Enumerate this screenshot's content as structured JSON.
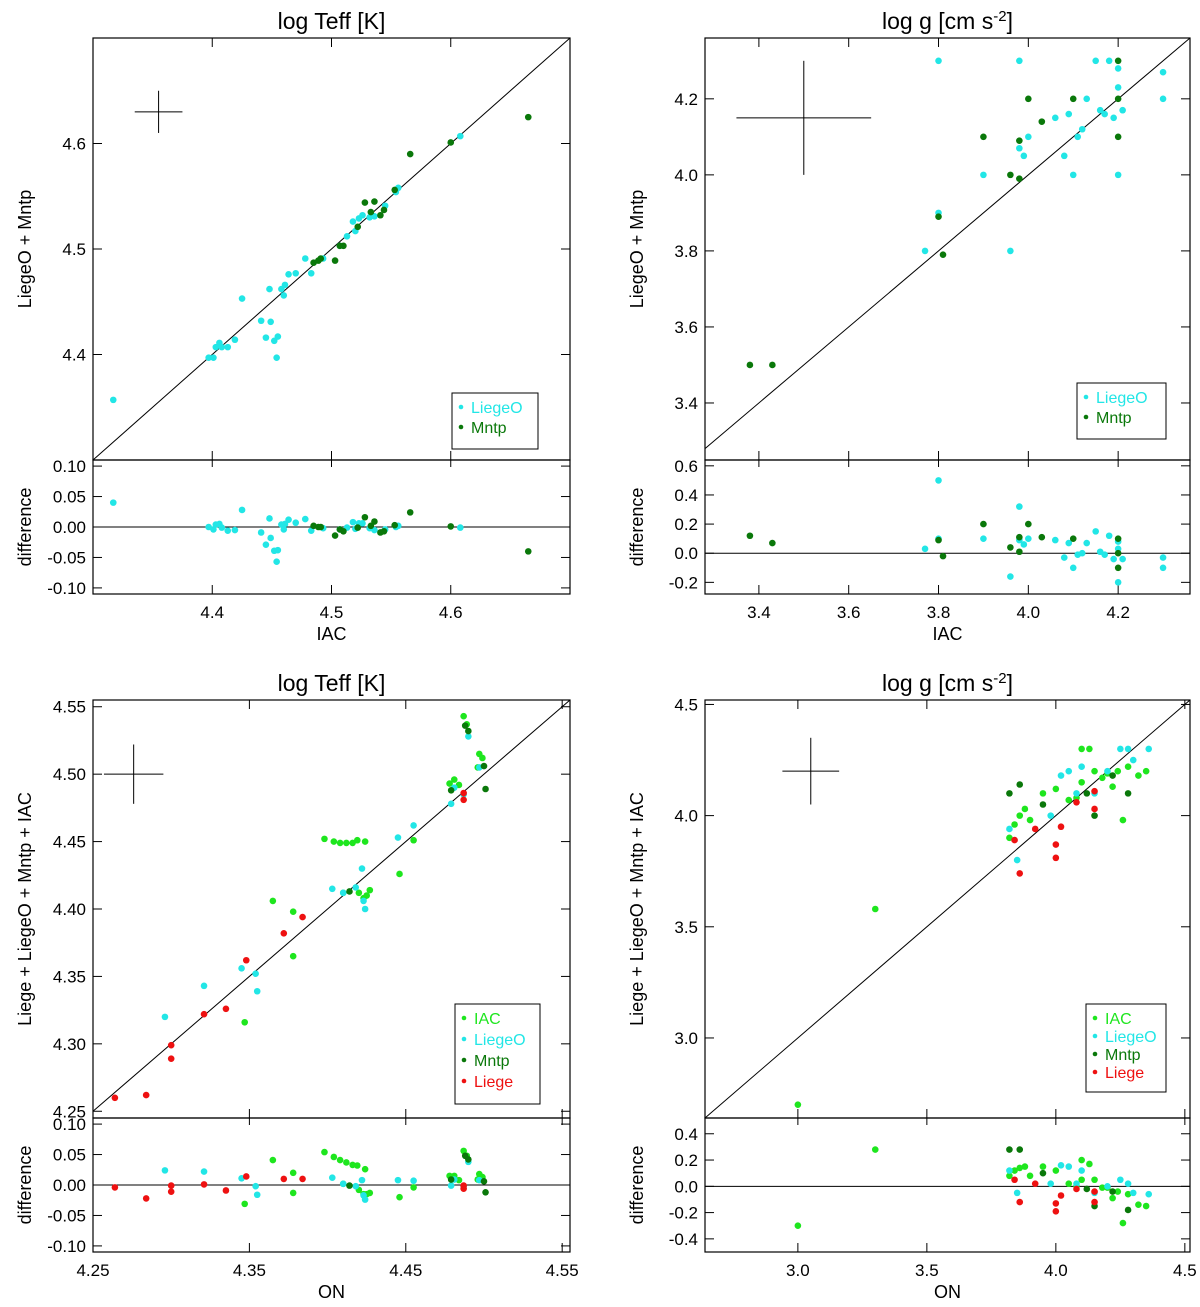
{
  "colors": {
    "IAC": "#1ee61e",
    "LiegeO": "#22e6e6",
    "Mntp": "#0a780a",
    "Liege": "#ee1111",
    "axis": "#000000"
  },
  "chart_data": [
    {
      "id": "p1",
      "type": "scatter",
      "title_main": "log Teff [K]",
      "title_sup": "",
      "xlabel": "IAC",
      "ylabel": "LiegeO + Mntp",
      "diff_ylabel": "difference",
      "xlim": [
        4.3,
        4.7
      ],
      "ylim": [
        4.3,
        4.7
      ],
      "diff_ylim": [
        -0.11,
        0.11
      ],
      "xticks": [
        4.4,
        4.5,
        4.6
      ],
      "yticks": [
        4.4,
        4.5,
        4.6
      ],
      "diff_yticks": [
        -0.1,
        -0.05,
        0.0,
        0.05,
        0.1
      ],
      "tick_decimals": 1,
      "diff_decimals": 2,
      "legend": [
        "LiegeO",
        "Mntp"
      ],
      "errorbar": {
        "x": 4.355,
        "y": 4.63,
        "dx": 0.02,
        "dy": 0.02
      },
      "series": [
        {
          "name": "LiegeO",
          "points": [
            [
              4.317,
              4.357
            ],
            [
              4.397,
              4.397
            ],
            [
              4.401,
              4.397
            ],
            [
              4.403,
              4.407
            ],
            [
              4.406,
              4.411
            ],
            [
              4.408,
              4.407
            ],
            [
              4.413,
              4.407
            ],
            [
              4.419,
              4.414
            ],
            [
              4.425,
              4.453
            ],
            [
              4.441,
              4.432
            ],
            [
              4.445,
              4.416
            ],
            [
              4.449,
              4.431
            ],
            [
              4.448,
              4.462
            ],
            [
              4.452,
              4.413
            ],
            [
              4.454,
              4.397
            ],
            [
              4.455,
              4.417
            ],
            [
              4.458,
              4.462
            ],
            [
              4.46,
              4.456
            ],
            [
              4.461,
              4.466
            ],
            [
              4.464,
              4.476
            ],
            [
              4.47,
              4.477
            ],
            [
              4.478,
              4.491
            ],
            [
              4.483,
              4.477
            ],
            [
              4.493,
              4.491
            ],
            [
              4.507,
              4.503
            ],
            [
              4.513,
              4.512
            ],
            [
              4.518,
              4.526
            ],
            [
              4.52,
              4.517
            ],
            [
              4.523,
              4.529
            ],
            [
              4.526,
              4.532
            ],
            [
              4.532,
              4.53
            ],
            [
              4.536,
              4.531
            ],
            [
              4.545,
              4.541
            ],
            [
              4.554,
              4.554
            ],
            [
              4.556,
              4.558
            ],
            [
              4.608,
              4.607
            ]
          ]
        },
        {
          "name": "Mntp",
          "points": [
            [
              4.485,
              4.487
            ],
            [
              4.489,
              4.489
            ],
            [
              4.491,
              4.491
            ],
            [
              4.503,
              4.489
            ],
            [
              4.507,
              4.503
            ],
            [
              4.51,
              4.503
            ],
            [
              4.522,
              4.521
            ],
            [
              4.528,
              4.544
            ],
            [
              4.533,
              4.535
            ],
            [
              4.536,
              4.545
            ],
            [
              4.541,
              4.532
            ],
            [
              4.544,
              4.537
            ],
            [
              4.553,
              4.556
            ],
            [
              4.566,
              4.59
            ],
            [
              4.6,
              4.601
            ],
            [
              4.665,
              4.625
            ]
          ]
        }
      ]
    },
    {
      "id": "p2",
      "type": "scatter",
      "title_main": "log g [cm s",
      "title_sup": "-2",
      "xlabel": "IAC",
      "ylabel": "LiegeO + Mntp",
      "diff_ylabel": "difference",
      "xlim": [
        3.28,
        4.36
      ],
      "ylim": [
        3.25,
        4.36
      ],
      "diff_ylim": [
        -0.28,
        0.64
      ],
      "xticks": [
        3.4,
        3.6,
        3.8,
        4.0,
        4.2
      ],
      "yticks": [
        3.4,
        3.6,
        3.8,
        4.0,
        4.2
      ],
      "diff_yticks": [
        -0.2,
        0.0,
        0.2,
        0.4,
        0.6
      ],
      "tick_decimals": 1,
      "diff_decimals": 1,
      "legend": [
        "LiegeO",
        "Mntp"
      ],
      "errorbar": {
        "x": 3.5,
        "y": 4.15,
        "dx": 0.15,
        "dy": 0.15
      },
      "series": [
        {
          "name": "LiegeO",
          "points": [
            [
              3.77,
              3.8
            ],
            [
              3.8,
              4.3
            ],
            [
              3.8,
              3.9
            ],
            [
              3.9,
              4.0
            ],
            [
              3.96,
              3.8
            ],
            [
              3.98,
              4.3
            ],
            [
              3.98,
              4.07
            ],
            [
              3.99,
              4.05
            ],
            [
              4.0,
              4.1
            ],
            [
              4.06,
              4.15
            ],
            [
              4.08,
              4.05
            ],
            [
              4.09,
              4.16
            ],
            [
              4.1,
              4.0
            ],
            [
              4.11,
              4.1
            ],
            [
              4.12,
              4.12
            ],
            [
              4.13,
              4.2
            ],
            [
              4.15,
              4.3
            ],
            [
              4.16,
              4.17
            ],
            [
              4.17,
              4.16
            ],
            [
              4.18,
              4.3
            ],
            [
              4.19,
              4.15
            ],
            [
              4.2,
              4.23
            ],
            [
              4.2,
              4.28
            ],
            [
              4.2,
              4.0
            ],
            [
              4.21,
              4.17
            ],
            [
              4.3,
              4.27
            ],
            [
              4.3,
              4.2
            ]
          ]
        },
        {
          "name": "Mntp",
          "points": [
            [
              3.38,
              3.5
            ],
            [
              3.43,
              3.5
            ],
            [
              3.8,
              3.89
            ],
            [
              3.81,
              3.79
            ],
            [
              3.9,
              4.1
            ],
            [
              3.96,
              4.0
            ],
            [
              3.98,
              4.09
            ],
            [
              3.98,
              3.99
            ],
            [
              4.0,
              4.2
            ],
            [
              4.03,
              4.14
            ],
            [
              4.1,
              4.2
            ],
            [
              4.2,
              4.3
            ],
            [
              4.2,
              4.2
            ],
            [
              4.2,
              4.1
            ]
          ]
        }
      ]
    },
    {
      "id": "p3",
      "type": "scatter",
      "title_main": "log Teff [K]",
      "title_sup": "",
      "xlabel": "ON",
      "ylabel": "Liege + LiegeO + Mntp + IAC",
      "diff_ylabel": "difference",
      "xlim": [
        4.25,
        4.555
      ],
      "ylim": [
        4.245,
        4.555
      ],
      "diff_ylim": [
        -0.11,
        0.11
      ],
      "xticks": [
        4.25,
        4.35,
        4.45,
        4.55
      ],
      "yticks": [
        4.25,
        4.3,
        4.35,
        4.4,
        4.45,
        4.5,
        4.55
      ],
      "diff_yticks": [
        -0.1,
        -0.05,
        0.0,
        0.05,
        0.1
      ],
      "tick_decimals": 2,
      "diff_decimals": 2,
      "legend": [
        "IAC",
        "LiegeO",
        "Mntp",
        "Liege"
      ],
      "errorbar": {
        "x": 4.276,
        "y": 4.5,
        "dx": 0.019,
        "dy": 0.022
      },
      "series": [
        {
          "name": "IAC",
          "points": [
            [
              4.347,
              4.316
            ],
            [
              4.365,
              4.406
            ],
            [
              4.378,
              4.398
            ],
            [
              4.378,
              4.365
            ],
            [
              4.398,
              4.452
            ],
            [
              4.404,
              4.45
            ],
            [
              4.408,
              4.449
            ],
            [
              4.41,
              4.412
            ],
            [
              4.412,
              4.449
            ],
            [
              4.416,
              4.449
            ],
            [
              4.419,
              4.451
            ],
            [
              4.42,
              4.412
            ],
            [
              4.423,
              4.408
            ],
            [
              4.424,
              4.45
            ],
            [
              4.425,
              4.41
            ],
            [
              4.427,
              4.414
            ],
            [
              4.446,
              4.426
            ],
            [
              4.455,
              4.451
            ],
            [
              4.478,
              4.493
            ],
            [
              4.481,
              4.496
            ],
            [
              4.484,
              4.492
            ],
            [
              4.487,
              4.543
            ],
            [
              4.489,
              4.537
            ],
            [
              4.496,
              4.505
            ],
            [
              4.497,
              4.515
            ],
            [
              4.499,
              4.512
            ]
          ]
        },
        {
          "name": "LiegeO",
          "points": [
            [
              4.296,
              4.32
            ],
            [
              4.321,
              4.343
            ],
            [
              4.345,
              4.356
            ],
            [
              4.354,
              4.352
            ],
            [
              4.355,
              4.339
            ],
            [
              4.403,
              4.415
            ],
            [
              4.41,
              4.412
            ],
            [
              4.418,
              4.416
            ],
            [
              4.422,
              4.43
            ],
            [
              4.423,
              4.406
            ],
            [
              4.424,
              4.4
            ],
            [
              4.445,
              4.453
            ],
            [
              4.455,
              4.462
            ],
            [
              4.479,
              4.478
            ],
            [
              4.481,
              4.49
            ],
            [
              4.487,
              4.485
            ],
            [
              4.49,
              4.528
            ],
            [
              4.497,
              4.505
            ]
          ]
        },
        {
          "name": "Mntp",
          "points": [
            [
              4.414,
              4.413
            ],
            [
              4.479,
              4.488
            ],
            [
              4.488,
              4.536
            ],
            [
              4.49,
              4.532
            ],
            [
              4.501,
              4.489
            ],
            [
              4.5,
              4.506
            ]
          ]
        },
        {
          "name": "Liege",
          "points": [
            [
              4.264,
              4.26
            ],
            [
              4.284,
              4.262
            ],
            [
              4.3,
              4.299
            ],
            [
              4.3,
              4.289
            ],
            [
              4.321,
              4.322
            ],
            [
              4.335,
              4.326
            ],
            [
              4.348,
              4.362
            ],
            [
              4.372,
              4.382
            ],
            [
              4.384,
              4.394
            ],
            [
              4.487,
              4.481
            ],
            [
              4.487,
              4.486
            ]
          ]
        }
      ]
    },
    {
      "id": "p4",
      "type": "scatter",
      "title_main": "log g [cm s",
      "title_sup": "-2",
      "xlabel": "ON",
      "ylabel": "Liege + LiegeO + Mntp + IAC",
      "diff_ylabel": "difference",
      "xlim": [
        2.64,
        4.52
      ],
      "ylim": [
        2.64,
        4.52
      ],
      "diff_ylim": [
        -0.5,
        0.52
      ],
      "xticks": [
        3.0,
        3.5,
        4.0,
        4.5
      ],
      "yticks": [
        3.0,
        3.5,
        4.0,
        4.5
      ],
      "diff_yticks": [
        -0.4,
        -0.2,
        0.0,
        0.2,
        0.4
      ],
      "tick_decimals": 1,
      "diff_decimals": 1,
      "legend": [
        "IAC",
        "LiegeO",
        "Mntp",
        "Liege"
      ],
      "errorbar": {
        "x": 3.05,
        "y": 4.2,
        "dx": 0.11,
        "dy": 0.15
      },
      "series": [
        {
          "name": "IAC",
          "points": [
            [
              3.0,
              2.7
            ],
            [
              3.3,
              3.58
            ],
            [
              3.82,
              3.9
            ],
            [
              3.84,
              3.96
            ],
            [
              3.86,
              4.0
            ],
            [
              3.88,
              4.03
            ],
            [
              3.9,
              3.98
            ],
            [
              3.95,
              4.1
            ],
            [
              4.0,
              4.12
            ],
            [
              4.05,
              4.07
            ],
            [
              4.08,
              4.08
            ],
            [
              4.1,
              4.3
            ],
            [
              4.1,
              4.15
            ],
            [
              4.13,
              4.3
            ],
            [
              4.15,
              4.2
            ],
            [
              4.18,
              4.17
            ],
            [
              4.2,
              4.19
            ],
            [
              4.22,
              4.13
            ],
            [
              4.24,
              4.2
            ],
            [
              4.26,
              3.98
            ],
            [
              4.28,
              4.22
            ],
            [
              4.32,
              4.18
            ],
            [
              4.35,
              4.2
            ]
          ]
        },
        {
          "name": "LiegeO",
          "points": [
            [
              3.82,
              3.94
            ],
            [
              3.85,
              3.8
            ],
            [
              3.98,
              4.0
            ],
            [
              4.02,
              4.18
            ],
            [
              4.05,
              4.2
            ],
            [
              4.08,
              4.1
            ],
            [
              4.1,
              4.22
            ],
            [
              4.15,
              4.1
            ],
            [
              4.2,
              4.2
            ],
            [
              4.25,
              4.3
            ],
            [
              4.28,
              4.3
            ],
            [
              4.3,
              4.25
            ],
            [
              4.36,
              4.3
            ]
          ]
        },
        {
          "name": "Mntp",
          "points": [
            [
              3.82,
              4.1
            ],
            [
              3.86,
              4.14
            ],
            [
              3.95,
              4.05
            ],
            [
              4.12,
              4.1
            ],
            [
              4.15,
              4.0
            ],
            [
              4.22,
              4.18
            ],
            [
              4.28,
              4.1
            ]
          ]
        },
        {
          "name": "Liege",
          "points": [
            [
              3.84,
              3.89
            ],
            [
              3.86,
              3.74
            ],
            [
              3.92,
              3.94
            ],
            [
              4.0,
              3.87
            ],
            [
              4.0,
              3.81
            ],
            [
              4.02,
              3.95
            ],
            [
              4.08,
              4.06
            ],
            [
              4.15,
              4.03
            ],
            [
              4.15,
              4.11
            ]
          ]
        }
      ]
    }
  ]
}
